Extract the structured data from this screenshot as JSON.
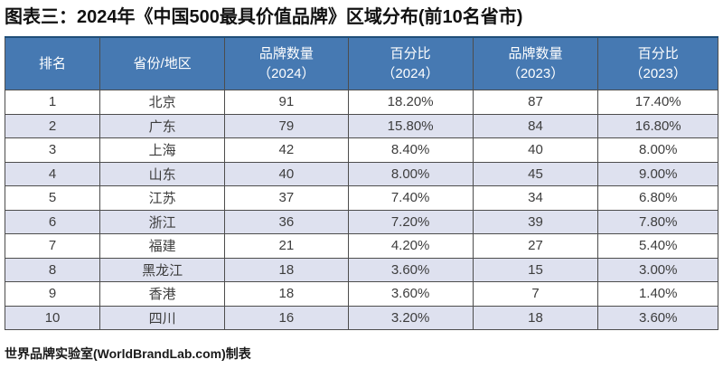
{
  "title": "图表三：2024年《中国500最具价值品牌》区域分布(前10名省市)",
  "footer": "世界品牌实验室(WorldBrandLab.com)制表",
  "colors": {
    "header_bg": "#4679b2",
    "header_text": "#ffffff",
    "row_bg": "#ffffff",
    "row_alt_bg": "#dee1ef",
    "border": "#4d4d4d",
    "top_accent_border": "#1f4e79",
    "cell_text": "#3d3d3d",
    "title_text": "#111111"
  },
  "table": {
    "header": [
      {
        "name": "rank",
        "lines": [
          "排名"
        ]
      },
      {
        "name": "province",
        "lines": [
          "省份/地区"
        ]
      },
      {
        "name": "brand-count-2024",
        "lines": [
          "品牌数量",
          "（2024）"
        ]
      },
      {
        "name": "percentage-2024",
        "lines": [
          "百分比",
          "（2024）"
        ]
      },
      {
        "name": "brand-count-2023",
        "lines": [
          "品牌数量",
          "（2023）"
        ]
      },
      {
        "name": "percentage-2023",
        "lines": [
          "百分比",
          "（2023）"
        ]
      }
    ],
    "rows": [
      [
        "1",
        "北京",
        "91",
        "18.20%",
        "87",
        "17.40%"
      ],
      [
        "2",
        "广东",
        "79",
        "15.80%",
        "84",
        "16.80%"
      ],
      [
        "3",
        "上海",
        "42",
        "8.40%",
        "40",
        "8.00%"
      ],
      [
        "4",
        "山东",
        "40",
        "8.00%",
        "45",
        "9.00%"
      ],
      [
        "5",
        "江苏",
        "37",
        "7.40%",
        "34",
        "6.80%"
      ],
      [
        "6",
        "浙江",
        "36",
        "7.20%",
        "39",
        "7.80%"
      ],
      [
        "7",
        "福建",
        "21",
        "4.20%",
        "27",
        "5.40%"
      ],
      [
        "8",
        "黑龙江",
        "18",
        "3.60%",
        "15",
        "3.00%"
      ],
      [
        "9",
        "香港",
        "18",
        "3.60%",
        "7",
        "1.40%"
      ],
      [
        "10",
        "四川",
        "16",
        "3.20%",
        "18",
        "3.60%"
      ]
    ]
  }
}
